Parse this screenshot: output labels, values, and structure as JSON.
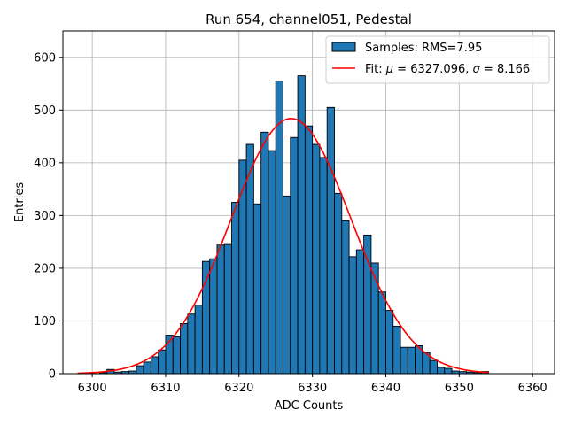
{
  "chart_data": {
    "type": "bar",
    "title": "Run 654, channel051, Pedestal",
    "xlabel": "ADC Counts",
    "ylabel": "Entries",
    "xlim": [
      6296,
      6363
    ],
    "ylim": [
      0,
      650
    ],
    "xticks": [
      6300,
      6310,
      6320,
      6330,
      6340,
      6350,
      6360
    ],
    "yticks": [
      0,
      100,
      200,
      300,
      400,
      500,
      600
    ],
    "grid": true,
    "legend_position": "top-right",
    "histogram": {
      "name": "Samples: RMS=7.95",
      "color": "#1f77b4",
      "edge_color": "#000000",
      "bin_edges": [
        6301.0,
        6302.0,
        6303.0,
        6304.0,
        6305.0,
        6306.0,
        6307.0,
        6308.0,
        6309.0,
        6310.0,
        6311.0,
        6312.0,
        6313.0,
        6314.0,
        6315.0,
        6316.0,
        6317.0,
        6318.0,
        6319.0,
        6320.0,
        6321.0,
        6322.0,
        6323.0,
        6324.0,
        6325.0,
        6326.0,
        6327.0,
        6328.0,
        6329.0,
        6330.0,
        6331.0,
        6332.0,
        6333.0,
        6334.0,
        6335.0,
        6336.0,
        6337.0,
        6338.0,
        6339.0,
        6340.0,
        6341.0,
        6342.0,
        6343.0,
        6344.0,
        6345.0,
        6346.0,
        6347.0,
        6348.0,
        6349.0,
        6350.0,
        6351.0,
        6352.0,
        6353.0,
        6354.0
      ],
      "counts": [
        2,
        8,
        3,
        4,
        5,
        15,
        22,
        32,
        45,
        73,
        70,
        95,
        113,
        130,
        213,
        218,
        244,
        245,
        325,
        405,
        435,
        322,
        458,
        423,
        555,
        337,
        448,
        565,
        470,
        435,
        410,
        505,
        342,
        290,
        222,
        235,
        263,
        210,
        155,
        120,
        90,
        50,
        50,
        53,
        40,
        25,
        12,
        10,
        5,
        4,
        3,
        2,
        4
      ]
    },
    "fit_curve": {
      "name": "Fit: μ = 6327.096, σ = 8.166",
      "label_mu_symbol": "μ",
      "label_mu_value": "6327.096",
      "label_sigma_symbol": "σ",
      "label_sigma_value": "8.166",
      "color": "#ff0000",
      "mu": 6327.096,
      "sigma": 8.166,
      "peak": 484,
      "x_range": [
        6298.0,
        6354.0
      ]
    }
  }
}
